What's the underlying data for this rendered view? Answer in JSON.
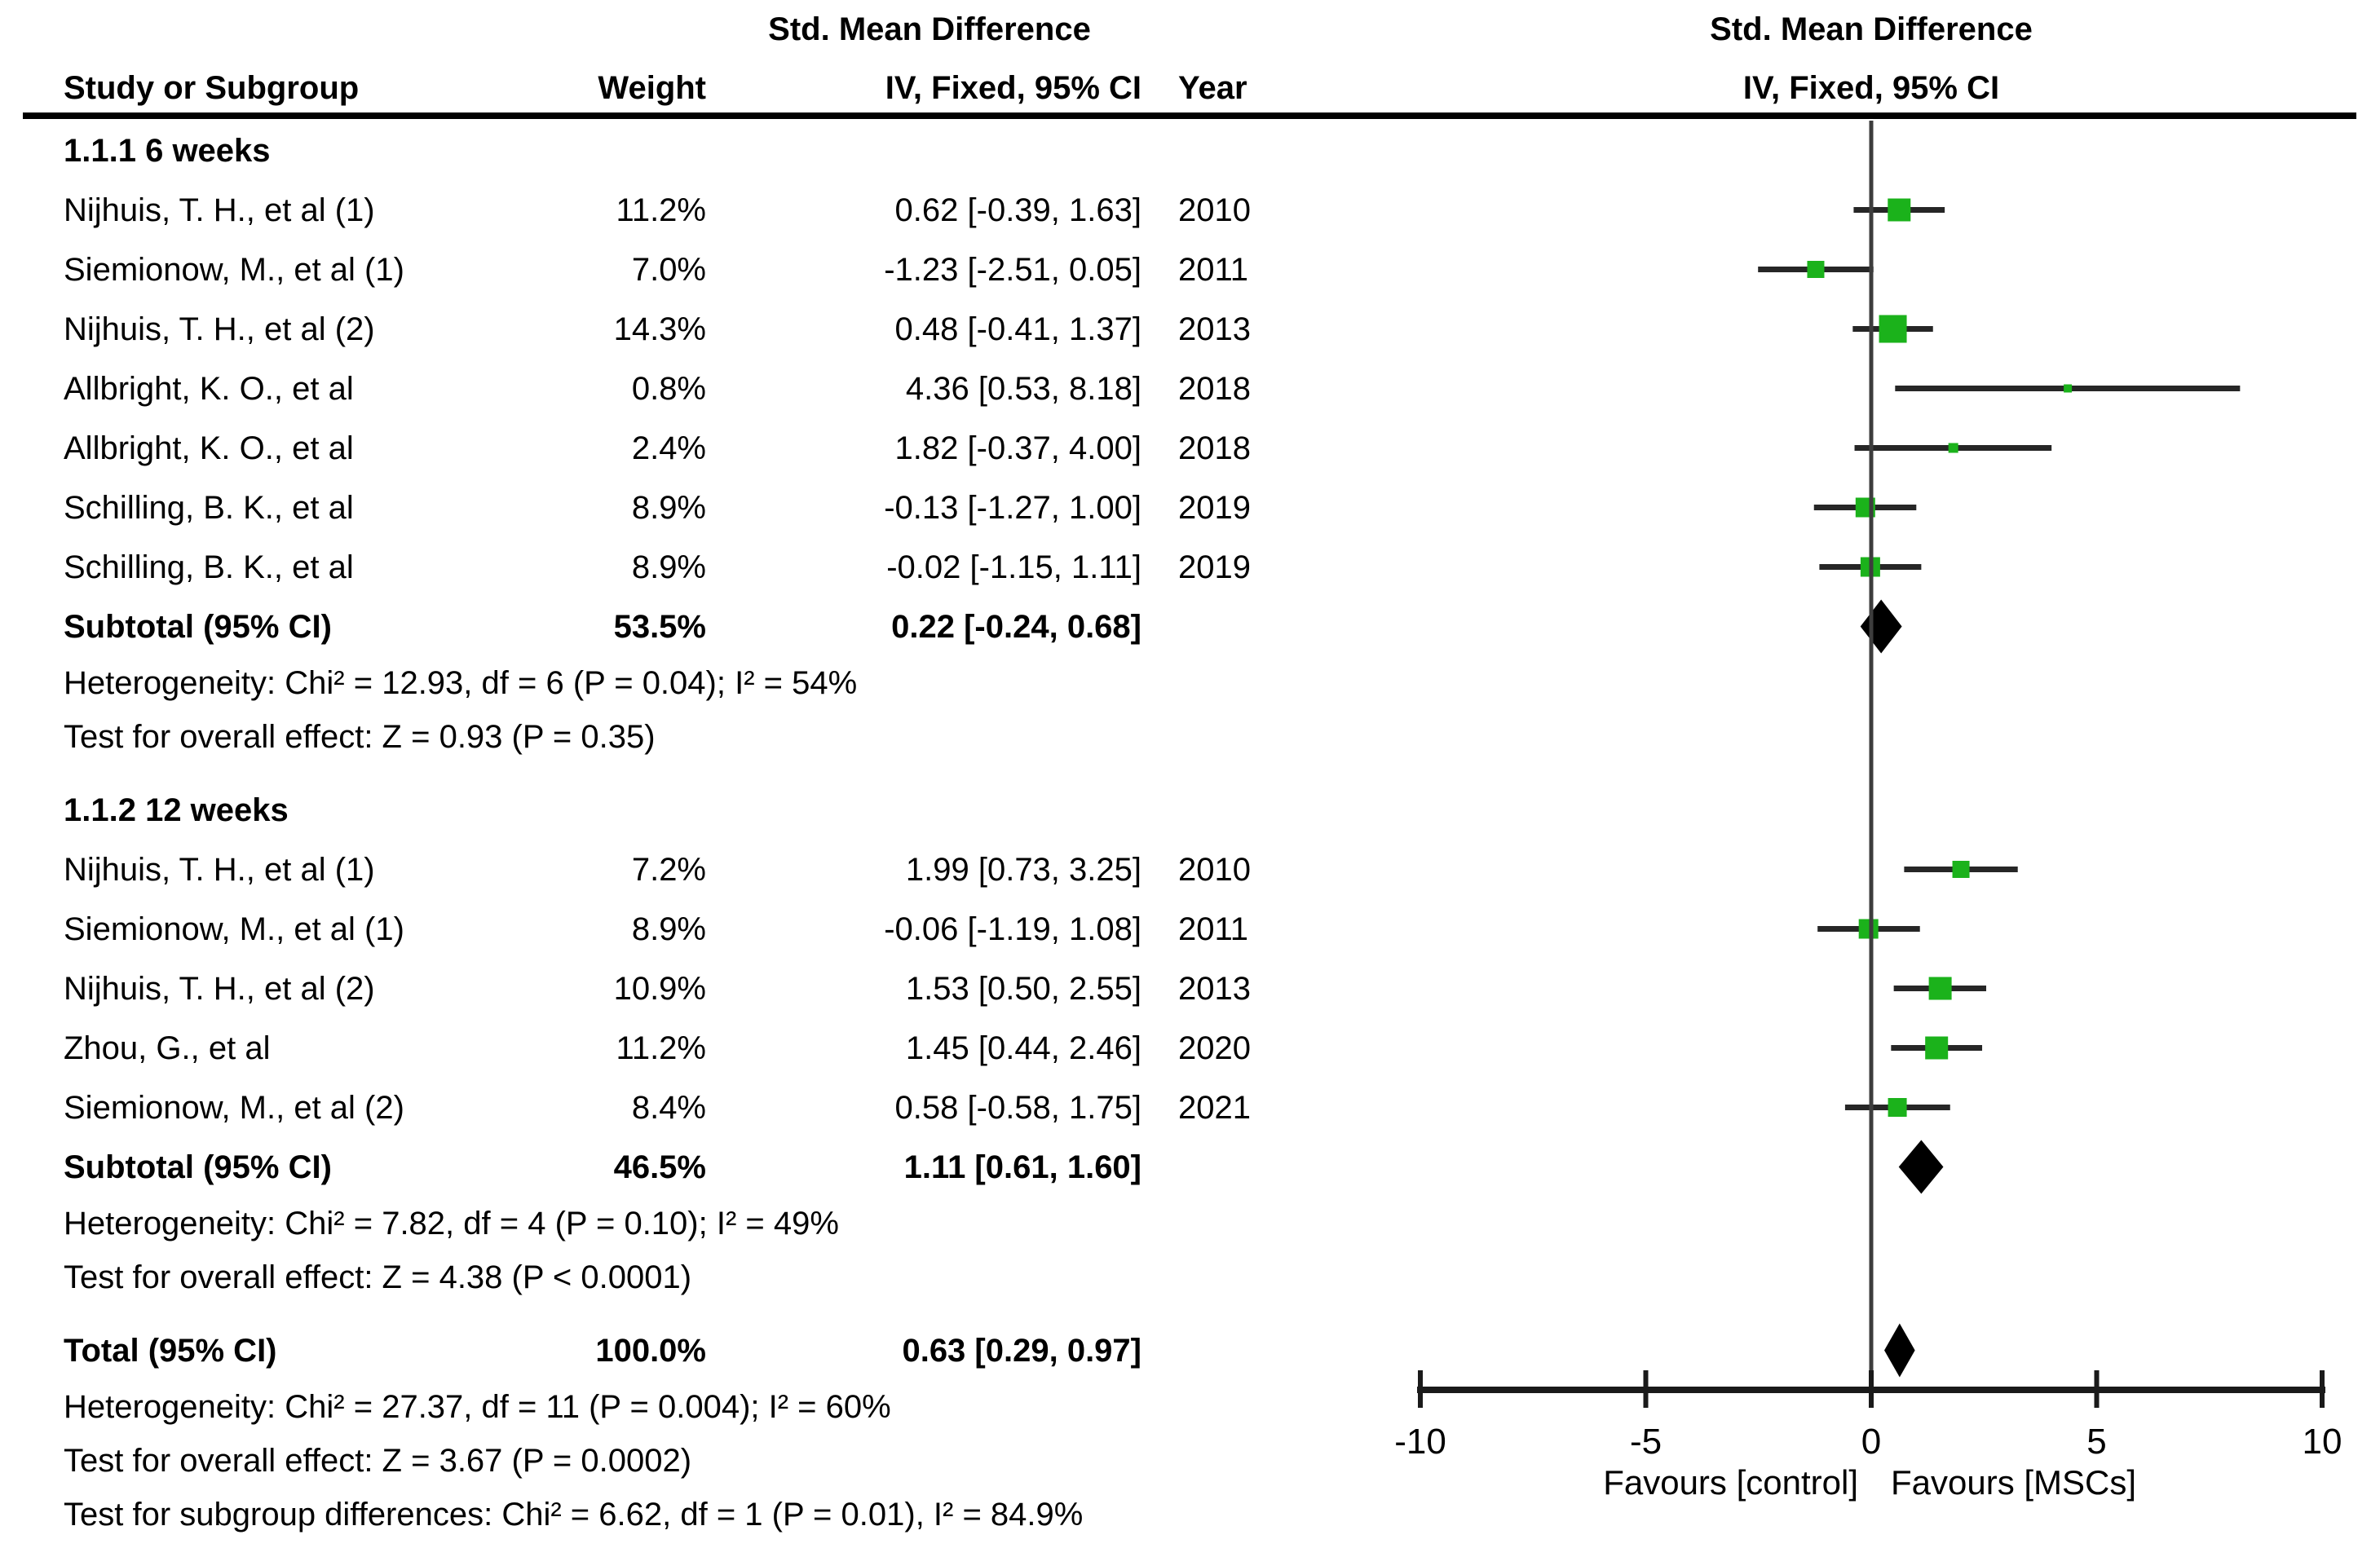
{
  "header": {
    "smd_left": "Std. Mean Difference",
    "study": "Study or Subgroup",
    "weight": "Weight",
    "ci": "IV, Fixed, 95% CI",
    "year": "Year",
    "smd_right": "Std. Mean Difference",
    "ci_right": "IV, Fixed, 95% CI"
  },
  "colors": {
    "marker_green": "#1bb21b",
    "ci_line": "#262626",
    "zero_line": "#3d3d3d",
    "axis": "#1a1a1a",
    "diamond": "#000000",
    "text": "#000000"
  },
  "chart_data": {
    "type": "forest",
    "effect_measure": "Std. Mean Difference",
    "model": "IV, Fixed, 95% CI",
    "xlim": [
      -10,
      10
    ],
    "ticks": [
      -10,
      -5,
      0,
      5,
      10
    ],
    "favours_left": "Favours [control]",
    "favours_right": "Favours [MSCs]",
    "rows": [
      {
        "kind": "section",
        "label": "1.1.1 6 weeks"
      },
      {
        "kind": "study",
        "label": "Nijhuis, T. H., et al (1)",
        "weight_text": "11.2%",
        "weight_pct": 11.2,
        "ci_text": "0.62 [-0.39, 1.63]",
        "year": "2010",
        "est": 0.62,
        "lo": -0.39,
        "hi": 1.63
      },
      {
        "kind": "study",
        "label": "Siemionow, M., et al (1)",
        "weight_text": "7.0%",
        "weight_pct": 7.0,
        "ci_text": "-1.23 [-2.51, 0.05]",
        "year": "2011",
        "est": -1.23,
        "lo": -2.51,
        "hi": 0.05
      },
      {
        "kind": "study",
        "label": "Nijhuis, T. H., et al (2)",
        "weight_text": "14.3%",
        "weight_pct": 14.3,
        "ci_text": "0.48 [-0.41, 1.37]",
        "year": "2013",
        "est": 0.48,
        "lo": -0.41,
        "hi": 1.37
      },
      {
        "kind": "study",
        "label": "Allbright, K. O., et al",
        "weight_text": "0.8%",
        "weight_pct": 0.8,
        "ci_text": "4.36 [0.53, 8.18]",
        "year": "2018",
        "est": 4.36,
        "lo": 0.53,
        "hi": 8.18
      },
      {
        "kind": "study",
        "label": "Allbright, K. O., et al",
        "weight_text": "2.4%",
        "weight_pct": 2.4,
        "ci_text": "1.82 [-0.37, 4.00]",
        "year": "2018",
        "est": 1.82,
        "lo": -0.37,
        "hi": 4.0
      },
      {
        "kind": "study",
        "label": "Schilling, B. K., et al",
        "weight_text": "8.9%",
        "weight_pct": 8.9,
        "ci_text": "-0.13 [-1.27, 1.00]",
        "year": "2019",
        "est": -0.13,
        "lo": -1.27,
        "hi": 1.0
      },
      {
        "kind": "study",
        "label": "Schilling, B. K., et al",
        "weight_text": "8.9%",
        "weight_pct": 8.9,
        "ci_text": "-0.02 [-1.15, 1.11]",
        "year": "2019",
        "est": -0.02,
        "lo": -1.15,
        "hi": 1.11
      },
      {
        "kind": "subtotal",
        "label": "Subtotal (95% CI)",
        "weight_text": "53.5%",
        "ci_text": "0.22 [-0.24, 0.68]",
        "est": 0.22,
        "lo": -0.24,
        "hi": 0.68
      },
      {
        "kind": "note",
        "label": "Heterogeneity: Chi² = 12.93, df = 6 (P = 0.04); I² = 54%"
      },
      {
        "kind": "note",
        "label": "Test for overall effect: Z = 0.93 (P = 0.35)"
      },
      {
        "kind": "blank"
      },
      {
        "kind": "section",
        "label": "1.1.2 12 weeks"
      },
      {
        "kind": "study",
        "label": "Nijhuis, T. H., et al (1)",
        "weight_text": "7.2%",
        "weight_pct": 7.2,
        "ci_text": "1.99 [0.73, 3.25]",
        "year": "2010",
        "est": 1.99,
        "lo": 0.73,
        "hi": 3.25
      },
      {
        "kind": "study",
        "label": "Siemionow, M., et al (1)",
        "weight_text": "8.9%",
        "weight_pct": 8.9,
        "ci_text": "-0.06 [-1.19, 1.08]",
        "year": "2011",
        "est": -0.06,
        "lo": -1.19,
        "hi": 1.08
      },
      {
        "kind": "study",
        "label": "Nijhuis, T. H., et al (2)",
        "weight_text": "10.9%",
        "weight_pct": 10.9,
        "ci_text": "1.53 [0.50, 2.55]",
        "year": "2013",
        "est": 1.53,
        "lo": 0.5,
        "hi": 2.55
      },
      {
        "kind": "study",
        "label": "Zhou, G., et al",
        "weight_text": "11.2%",
        "weight_pct": 11.2,
        "ci_text": "1.45 [0.44, 2.46]",
        "year": "2020",
        "est": 1.45,
        "lo": 0.44,
        "hi": 2.46
      },
      {
        "kind": "study",
        "label": "Siemionow, M., et al (2)",
        "weight_text": "8.4%",
        "weight_pct": 8.4,
        "ci_text": "0.58 [-0.58, 1.75]",
        "year": "2021",
        "est": 0.58,
        "lo": -0.58,
        "hi": 1.75
      },
      {
        "kind": "subtotal",
        "label": "Subtotal (95% CI)",
        "weight_text": "46.5%",
        "ci_text": "1.11 [0.61, 1.60]",
        "est": 1.11,
        "lo": 0.61,
        "hi": 1.6
      },
      {
        "kind": "note",
        "label": "Heterogeneity: Chi² = 7.82, df = 4 (P = 0.10); I² = 49%"
      },
      {
        "kind": "note",
        "label": "Test for overall effect: Z = 4.38 (P < 0.0001)"
      },
      {
        "kind": "blank"
      },
      {
        "kind": "total",
        "label": "Total (95% CI)",
        "weight_text": "100.0%",
        "ci_text": "0.63 [0.29, 0.97]",
        "est": 0.63,
        "lo": 0.29,
        "hi": 0.97
      },
      {
        "kind": "note",
        "label": "Heterogeneity: Chi² = 27.37, df = 11 (P = 0.004); I² = 60%"
      },
      {
        "kind": "note",
        "label": "Test for overall effect: Z = 3.67 (P = 0.0002)"
      },
      {
        "kind": "note",
        "label": "Test for subgroup differences: Chi² = 6.62, df = 1 (P = 0.01), I² = 84.9%"
      }
    ]
  }
}
